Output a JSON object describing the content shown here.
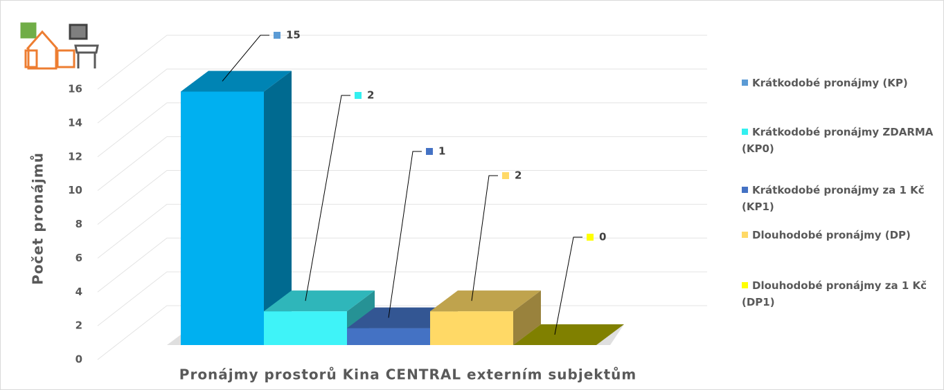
{
  "chart_data": {
    "type": "bar3d",
    "x_label": "Pronájmy prostorů Kina CENTRAL externím subjektům",
    "y_label": "Počet pronájmů",
    "ylim": [
      0,
      16
    ],
    "yticks": [
      0,
      2,
      4,
      6,
      8,
      10,
      12,
      14,
      16
    ],
    "grid": true,
    "legend": "right",
    "series": [
      {
        "name": "Krátkodobé pronájmy (KP)",
        "color": "#00b0f0",
        "legend_color": "#5b9bd5",
        "values": [
          15
        ]
      },
      {
        "name": "Krátkodobé pronájmy ZDARMA (KP0)",
        "color": "#3ff3f8",
        "legend_color": "#33f0f0",
        "values": [
          2
        ]
      },
      {
        "name": "Krátkodobé pronájmy za 1 Kč (KP1)",
        "color": "#4472c4",
        "legend_color": "#4472c4",
        "values": [
          1
        ]
      },
      {
        "name": "Dlouhodobé pronájmy (DP)",
        "color": "#ffd966",
        "legend_color": "#ffd966",
        "values": [
          2
        ]
      },
      {
        "name": "Dlouhodobé pronájmy za 1 Kč (DP1)",
        "color": "#ffff00",
        "legend_color": "#ffff00",
        "values": [
          0
        ]
      }
    ]
  }
}
